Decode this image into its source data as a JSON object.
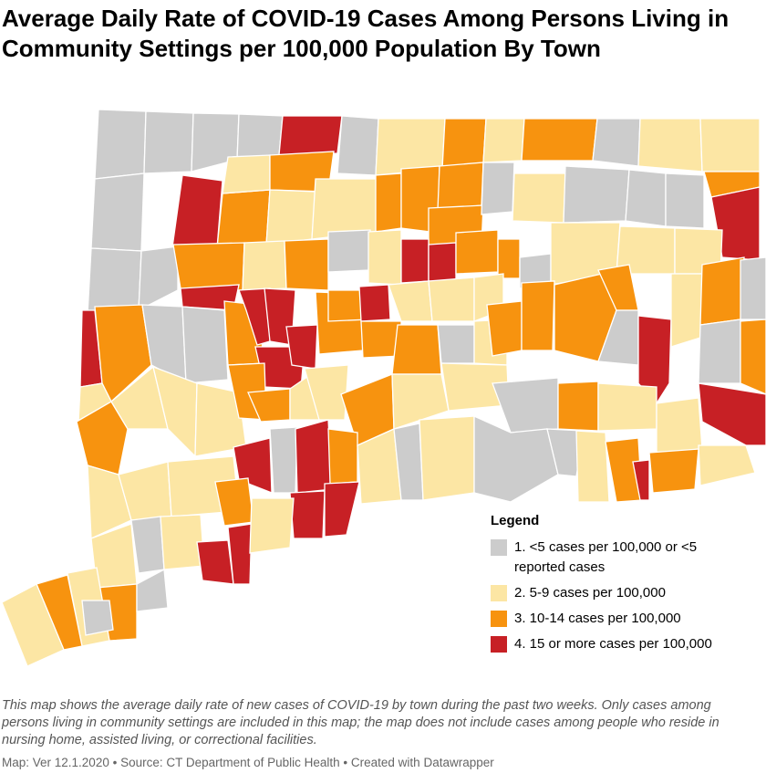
{
  "title": "Average Daily Rate of COVID-19 Cases Among Persons Living in Community Settings per 100,000 Population By Town",
  "colors": {
    "cat1": "#cccccc",
    "cat2": "#fce6a4",
    "cat3": "#f7930f",
    "cat4": "#c72025",
    "border": "#ffffff"
  },
  "legend": {
    "title": "Legend",
    "items": [
      {
        "label": "1. <5 cases per 100,000 or <5 reported cases",
        "category": 1
      },
      {
        "label": "2. 5-9 cases per 100,000",
        "category": 2
      },
      {
        "label": "3. 10-14 cases per 100,000",
        "category": 3
      },
      {
        "label": "4. 15 or more cases per 100,000",
        "category": 4
      }
    ]
  },
  "note": "This map shows the average daily rate of new cases of COVID-19 by town during the past two weeks. Only cases among persons living in community settings are included in this map; the map does not include cases among people who reside in nursing home, assisted living, or correctional facilities.",
  "credit": "Map: Ver 12.1.2020 • Source: CT Department of Public Health • Created with Datawrapper"
}
